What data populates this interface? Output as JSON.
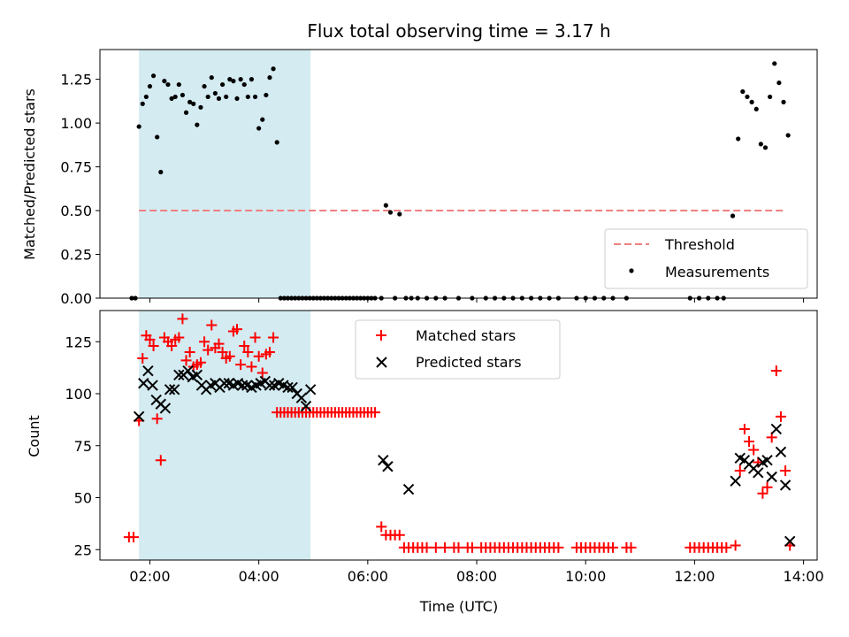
{
  "chart_data": [
    {
      "type": "scatter",
      "title": "Flux total observing time = 3.17 h",
      "ylabel": "Matched/Predicted stars",
      "xlabel": "",
      "xlim": [
        "01:05",
        "14:15"
      ],
      "ylim": [
        0,
        1.42
      ],
      "xticks": [
        "02:00",
        "04:00",
        "06:00",
        "08:00",
        "10:00",
        "12:00",
        "14:00"
      ],
      "yticks": [
        "0.00",
        "0.25",
        "0.50",
        "0.75",
        "1.00",
        "1.25"
      ],
      "shaded_interval": [
        "01:48",
        "04:57"
      ],
      "shaded_color": "#d3ebf1",
      "legend": {
        "placement": "bottom-right",
        "entries": [
          "Threshold",
          "Measurements"
        ]
      },
      "series": [
        {
          "name": "Threshold",
          "style": "dashed-line",
          "color": "#f08080",
          "x": [
            "01:48",
            "13:40"
          ],
          "values": [
            0.5,
            0.5
          ]
        },
        {
          "name": "Measurements",
          "style": "dot",
          "color": "#000000",
          "x": [
            "01:40",
            "01:44",
            "01:48",
            "01:52",
            "01:56",
            "02:00",
            "02:04",
            "02:08",
            "02:12",
            "02:16",
            "02:20",
            "02:24",
            "02:28",
            "02:32",
            "02:36",
            "02:40",
            "02:44",
            "02:48",
            "02:52",
            "02:56",
            "03:00",
            "03:04",
            "03:08",
            "03:12",
            "03:16",
            "03:20",
            "03:24",
            "03:28",
            "03:32",
            "03:36",
            "03:40",
            "03:44",
            "03:48",
            "03:52",
            "03:56",
            "04:00",
            "04:04",
            "04:08",
            "04:12",
            "04:16",
            "04:20",
            "04:24",
            "04:28",
            "04:32",
            "04:36",
            "04:40",
            "04:44",
            "04:48",
            "04:52",
            "04:56",
            "05:00",
            "05:04",
            "05:08",
            "05:12",
            "05:16",
            "05:20",
            "05:24",
            "05:28",
            "05:32",
            "05:36",
            "05:40",
            "05:44",
            "05:48",
            "05:52",
            "05:56",
            "06:00",
            "06:04",
            "06:08",
            "06:15",
            "06:20",
            "06:25",
            "06:30",
            "06:35",
            "06:42",
            "06:48",
            "06:55",
            "07:05",
            "07:15",
            "07:25",
            "07:40",
            "07:55",
            "08:10",
            "08:20",
            "08:30",
            "08:40",
            "08:50",
            "09:00",
            "09:10",
            "09:20",
            "09:30",
            "09:50",
            "10:00",
            "10:10",
            "10:20",
            "10:30",
            "10:45",
            "11:55",
            "12:05",
            "12:15",
            "12:25",
            "12:32",
            "12:42",
            "12:48",
            "12:53",
            "12:58",
            "13:03",
            "13:08",
            "13:13",
            "13:18",
            "13:23",
            "13:28",
            "13:33",
            "13:38",
            "13:43"
          ],
          "values": [
            0,
            0,
            0.98,
            1.11,
            1.15,
            1.21,
            1.27,
            0.92,
            0.72,
            1.24,
            1.22,
            1.14,
            1.15,
            1.22,
            1.16,
            1.06,
            1.12,
            1.11,
            0.99,
            1.09,
            1.21,
            1.15,
            1.26,
            1.17,
            1.14,
            1.22,
            1.15,
            1.25,
            1.24,
            1.14,
            1.25,
            1.22,
            1.15,
            1.25,
            1.15,
            0.97,
            1.02,
            1.16,
            1.26,
            1.31,
            0.89,
            0,
            0,
            0,
            0,
            0,
            0,
            0,
            0,
            0,
            0,
            0,
            0,
            0,
            0,
            0,
            0,
            0,
            0,
            0,
            0,
            0,
            0,
            0,
            0,
            0,
            0,
            0,
            0,
            0.53,
            0.49,
            0,
            0.48,
            0,
            0,
            0,
            0,
            0,
            0,
            0,
            0,
            0,
            0,
            0,
            0,
            0,
            0,
            0,
            0,
            0,
            0,
            0,
            0,
            0,
            0,
            0,
            0,
            0,
            0,
            0,
            0,
            0.47,
            0.91,
            1.18,
            1.15,
            1.12,
            1.08,
            0.88,
            0.86,
            1.15,
            1.34,
            1.23,
            1.12,
            0.93
          ]
        }
      ]
    },
    {
      "type": "scatter",
      "title": "",
      "ylabel": "Count",
      "xlabel": "Time (UTC)",
      "xlim": [
        "01:05",
        "14:15"
      ],
      "ylim": [
        20,
        140
      ],
      "xticks": [
        "02:00",
        "04:00",
        "06:00",
        "08:00",
        "10:00",
        "12:00",
        "14:00"
      ],
      "yticks": [
        "25",
        "50",
        "75",
        "100",
        "125"
      ],
      "shaded_interval": [
        "01:48",
        "04:57"
      ],
      "shaded_color": "#d3ebf1",
      "legend": {
        "placement": "top-center",
        "entries": [
          "Matched stars",
          "Predicted stars"
        ]
      },
      "series": [
        {
          "name": "Matched stars",
          "marker": "plus",
          "color": "#ff0000",
          "x": [
            "01:37",
            "01:42",
            "01:48",
            "01:52",
            "01:56",
            "02:00",
            "02:04",
            "02:08",
            "02:12",
            "02:16",
            "02:20",
            "02:24",
            "02:28",
            "02:32",
            "02:36",
            "02:40",
            "02:44",
            "02:48",
            "02:52",
            "02:56",
            "03:00",
            "03:04",
            "03:08",
            "03:12",
            "03:16",
            "03:20",
            "03:24",
            "03:28",
            "03:32",
            "03:36",
            "03:40",
            "03:44",
            "03:48",
            "03:52",
            "03:56",
            "04:00",
            "04:04",
            "04:08",
            "04:12",
            "04:16",
            "04:20",
            "04:24",
            "04:28",
            "04:32",
            "04:36",
            "04:40",
            "04:44",
            "04:48",
            "04:52",
            "04:56",
            "05:00",
            "05:04",
            "05:08",
            "05:12",
            "05:16",
            "05:20",
            "05:24",
            "05:28",
            "05:32",
            "05:36",
            "05:40",
            "05:44",
            "05:48",
            "05:52",
            "05:56",
            "06:00",
            "06:04",
            "06:08",
            "06:15",
            "06:20",
            "06:25",
            "06:30",
            "06:35",
            "06:40",
            "06:45",
            "06:50",
            "06:55",
            "07:00",
            "07:05",
            "07:15",
            "07:25",
            "07:35",
            "07:40",
            "07:50",
            "07:55",
            "08:05",
            "08:10",
            "08:15",
            "08:20",
            "08:25",
            "08:30",
            "08:35",
            "08:40",
            "08:45",
            "08:50",
            "08:55",
            "09:00",
            "09:05",
            "09:10",
            "09:15",
            "09:20",
            "09:25",
            "09:30",
            "09:50",
            "09:55",
            "10:00",
            "10:05",
            "10:10",
            "10:15",
            "10:20",
            "10:25",
            "10:30",
            "10:45",
            "10:50",
            "11:55",
            "12:00",
            "12:05",
            "12:10",
            "12:15",
            "12:20",
            "12:25",
            "12:30",
            "12:35",
            "12:45",
            "12:50",
            "12:55",
            "13:00",
            "13:05",
            "13:10",
            "13:15",
            "13:20",
            "13:25",
            "13:30",
            "13:35",
            "13:40",
            "13:45"
          ],
          "values": [
            31,
            31,
            87,
            117,
            128,
            126,
            123,
            88,
            68,
            127,
            125,
            123,
            126,
            127,
            136,
            116,
            120,
            113,
            114,
            115,
            125,
            121,
            133,
            122,
            124,
            120,
            117,
            118,
            130,
            131,
            114,
            123,
            120,
            113,
            127,
            118,
            110,
            119,
            120,
            127,
            91,
            91,
            91,
            91,
            91,
            91,
            91,
            91,
            91,
            91,
            91,
            91,
            91,
            91,
            91,
            91,
            91,
            91,
            91,
            91,
            91,
            91,
            91,
            91,
            91,
            91,
            91,
            91,
            36,
            32,
            32,
            32,
            32,
            26,
            26,
            26,
            26,
            26,
            26,
            26,
            26,
            26,
            26,
            26,
            26,
            26,
            26,
            26,
            26,
            26,
            26,
            26,
            26,
            26,
            26,
            26,
            26,
            26,
            26,
            26,
            26,
            26,
            26,
            26,
            26,
            26,
            26,
            26,
            26,
            26,
            26,
            26,
            26,
            26,
            26,
            26,
            26,
            26,
            26,
            26,
            26,
            26,
            26,
            27,
            63,
            83,
            77,
            73,
            67,
            52,
            55,
            79,
            111,
            89,
            63,
            27
          ]
        },
        {
          "name": "Predicted stars",
          "marker": "x",
          "color": "#000000",
          "x": [
            "01:48",
            "01:53",
            "01:58",
            "02:03",
            "02:07",
            "02:12",
            "02:17",
            "02:22",
            "02:27",
            "02:32",
            "02:37",
            "02:42",
            "02:47",
            "02:52",
            "02:57",
            "03:02",
            "03:07",
            "03:12",
            "03:17",
            "03:22",
            "03:27",
            "03:32",
            "03:37",
            "03:42",
            "03:47",
            "03:52",
            "03:57",
            "04:02",
            "04:07",
            "04:12",
            "04:17",
            "04:22",
            "04:27",
            "04:32",
            "04:37",
            "04:42",
            "04:47",
            "04:52",
            "04:57",
            "06:17",
            "06:22",
            "06:45",
            "12:45",
            "12:50",
            "12:55",
            "13:00",
            "13:05",
            "13:10",
            "13:15",
            "13:20",
            "13:25",
            "13:30",
            "13:35",
            "13:40",
            "13:45"
          ],
          "values": [
            89,
            105,
            111,
            104,
            97,
            95,
            93,
            102,
            102,
            109,
            109,
            111,
            108,
            109,
            104,
            102,
            104,
            105,
            103,
            105,
            105,
            104,
            105,
            104,
            104,
            103,
            104,
            105,
            106,
            104,
            104,
            105,
            104,
            103,
            103,
            100,
            98,
            94,
            102,
            68,
            65,
            54,
            58,
            69,
            68,
            66,
            64,
            62,
            67,
            68,
            60,
            83,
            72,
            56,
            29
          ]
        }
      ]
    }
  ]
}
